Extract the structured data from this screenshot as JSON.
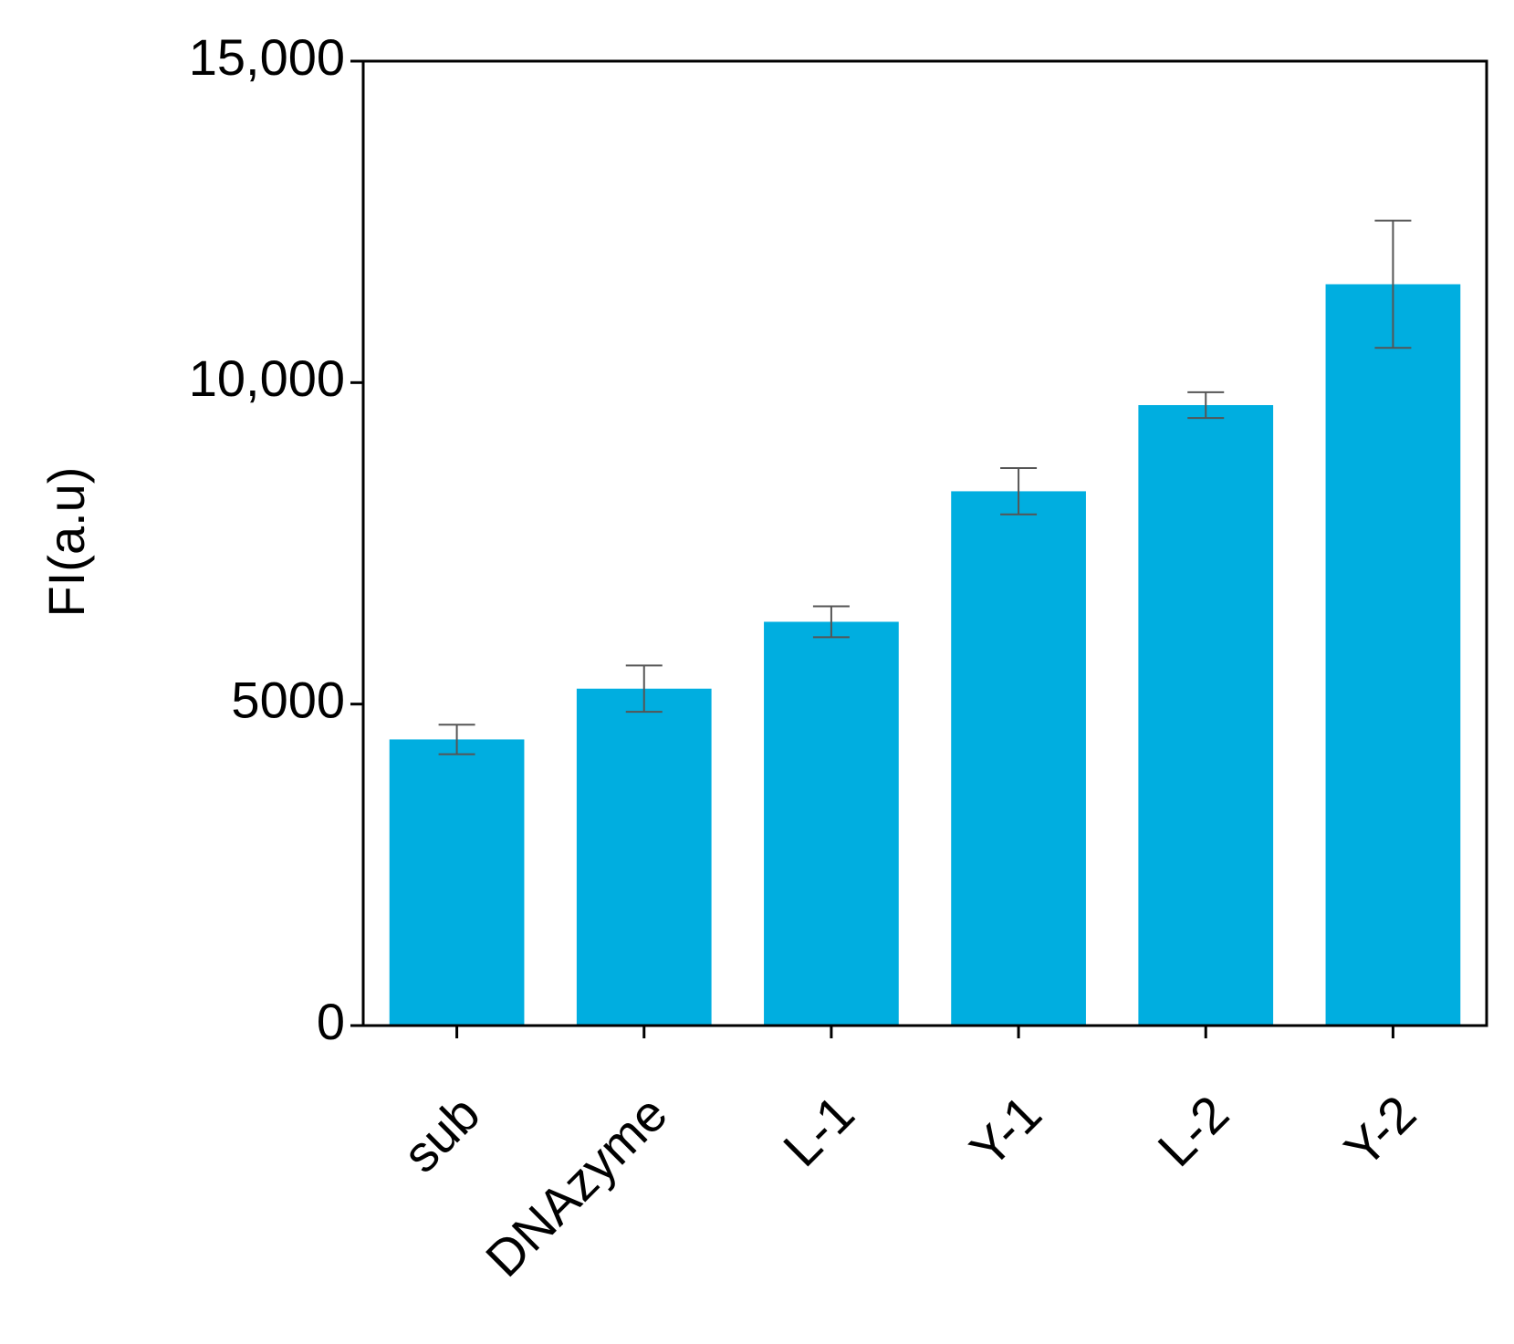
{
  "chart_data": {
    "type": "bar",
    "y_label": "FI(a.u)",
    "categories": [
      "sub",
      "DNAzyme",
      "L-1",
      "Y-1",
      "L-2",
      "Y-2"
    ],
    "values": [
      4450,
      5240,
      6280,
      8310,
      9650,
      11530
    ],
    "errors": [
      230,
      360,
      240,
      360,
      200,
      990
    ],
    "color": "#00aee0",
    "error_color": "#555555",
    "ylim": [
      0,
      15000
    ],
    "yticks": [
      0,
      5000,
      {
        "value": 10000,
        "label": "10,000"
      },
      {
        "value": 15000,
        "label": "15,000"
      }
    ],
    "grid": false
  }
}
